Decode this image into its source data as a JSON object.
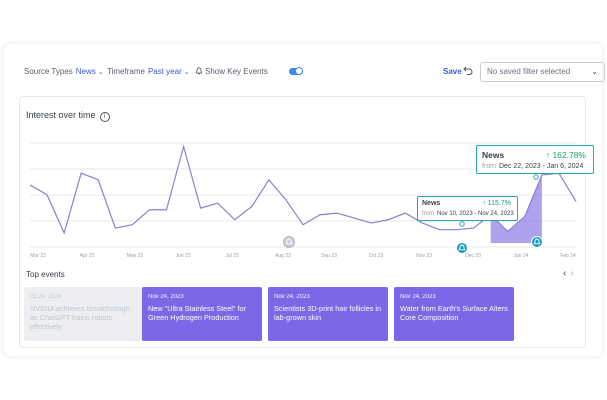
{
  "filters": {
    "source_types_label": "Source Types",
    "source_types_value": "News",
    "timeframe_label": "Timeframe",
    "timeframe_value": "Past year",
    "show_key_events_label": "Show Key Events",
    "show_key_events_on": true,
    "save_label": "Save",
    "saved_filter_placeholder": "No saved filter selected"
  },
  "chart": {
    "title": "Interest over time",
    "x_ticks": [
      "Mar 23",
      "Apr 23",
      "May 23",
      "Jun 23",
      "Jul 23",
      "Aug 23",
      "Sep 23",
      "Oct 23",
      "Nov 23",
      "Dec 23",
      "Jan 24",
      "Feb 24"
    ],
    "line_color": "#8a7fd4",
    "highlight_color": "#6b55e0",
    "tooltip_small": {
      "source": "News",
      "change": "115.7%",
      "from_label": "from",
      "range": "Nov 10, 2023 - Nov 24, 2023"
    },
    "tooltip_large": {
      "source": "News",
      "change": "162.78%",
      "from_label": "from",
      "range": "Dec 22, 2023 - Jan 6, 2024"
    }
  },
  "chart_data": {
    "type": "line",
    "x": [
      "Mar 23",
      "",
      "Apr 23",
      "",
      "",
      "",
      "May 23",
      "",
      "",
      "",
      "Jun 23",
      "Jun 23",
      "",
      "",
      "Jul 23",
      "",
      "",
      "Aug 23",
      "",
      "",
      "Sep 23",
      "",
      "Oct 23",
      "",
      "",
      "Nov 23",
      "",
      "Dec 23",
      "",
      "",
      "Jan 24",
      "",
      "Feb 24"
    ],
    "values": [
      35,
      29,
      6,
      42,
      38,
      9,
      11,
      20,
      20,
      58,
      21,
      24,
      14,
      22,
      38,
      26,
      11,
      17,
      18,
      15,
      12,
      14,
      18,
      12,
      8,
      8,
      9,
      17,
      7,
      16,
      41,
      42,
      25
    ],
    "ylim": [
      0,
      62
    ],
    "grid": true
  },
  "top_events": {
    "label": "Top events",
    "items": [
      {
        "date": "02.24, 2024",
        "title": "NVIDIA achieves breakthrough as ChatGPT trains robots effectively",
        "style": "faded"
      },
      {
        "date": "Nov 24, 2023",
        "title": "New \"Ultra Stainless Steel\" for Green Hydrogen Production",
        "style": "purple"
      },
      {
        "date": "Nov 24, 2023",
        "title": "Scientists 3D-print hair follicles in lab-grown skin",
        "style": "purple"
      },
      {
        "date": "Nov 24, 2023",
        "title": "Water from Earth's Surface Alters Core Composition",
        "style": "purple"
      }
    ]
  }
}
